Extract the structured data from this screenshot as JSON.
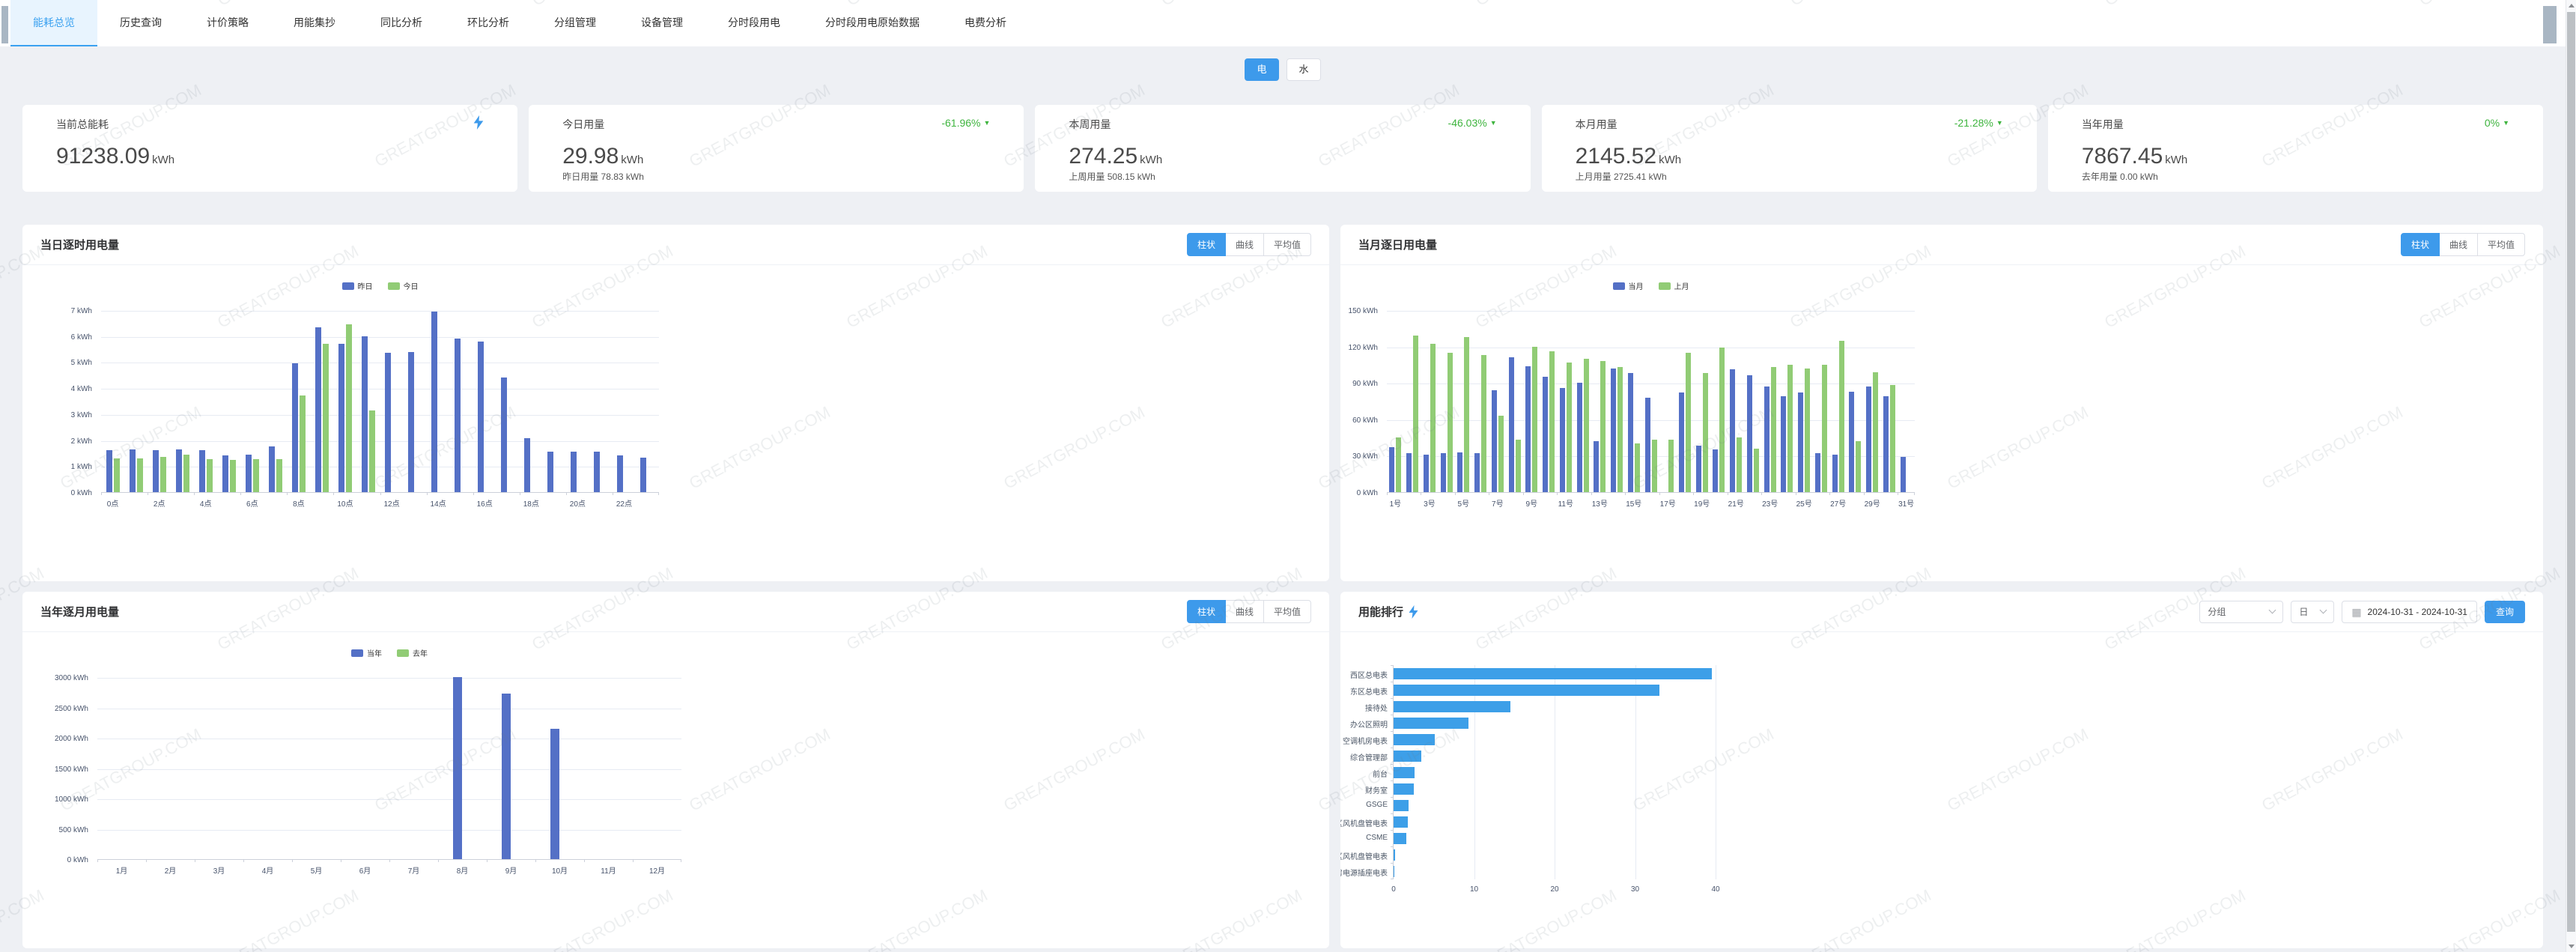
{
  "watermark": "GREATGROUP.COM",
  "tabs": [
    {
      "label": "能耗总览",
      "active": true
    },
    {
      "label": "历史查询",
      "active": false
    },
    {
      "label": "计价策略",
      "active": false
    },
    {
      "label": "用能集抄",
      "active": false
    },
    {
      "label": "同比分析",
      "active": false
    },
    {
      "label": "环比分析",
      "active": false
    },
    {
      "label": "分组管理",
      "active": false
    },
    {
      "label": "设备管理",
      "active": false
    },
    {
      "label": "分时段用电",
      "active": false
    },
    {
      "label": "分时段用电原始数据",
      "active": false
    },
    {
      "label": "电费分析",
      "active": false
    }
  ],
  "energy_toggle": {
    "electric": "电",
    "water": "水"
  },
  "kpi_cards": [
    {
      "title": "当前总能耗",
      "value": "91238.09",
      "unit": "kWh"
    },
    {
      "title": "今日用量",
      "value": "29.98",
      "unit": "kWh",
      "change": "-61.96%",
      "sub": "昨日用量 78.83 kWh"
    },
    {
      "title": "本周用量",
      "value": "274.25",
      "unit": "kWh",
      "change": "-46.03%",
      "sub": "上周用量 508.15 kWh"
    },
    {
      "title": "本月用量",
      "value": "2145.52",
      "unit": "kWh",
      "change": "-21.28%",
      "sub": "上月用量 2725.41 kWh"
    },
    {
      "title": "当年用量",
      "value": "7867.45",
      "unit": "kWh",
      "change": "0%",
      "sub": "去年用量 0.00 kWh"
    }
  ],
  "chart_data": [
    {
      "id": "hourly",
      "type": "bar",
      "title": "当日逐时用电量",
      "unit": "kWh",
      "ylim": [
        0,
        7
      ],
      "ystep": 1,
      "xlabel_every": 2,
      "categories": [
        "0点",
        "1点",
        "2点",
        "3点",
        "4点",
        "5点",
        "6点",
        "7点",
        "8点",
        "9点",
        "10点",
        "11点",
        "12点",
        "13点",
        "14点",
        "15点",
        "16点",
        "17点",
        "18点",
        "19点",
        "20点",
        "21点",
        "22点",
        "23点"
      ],
      "series": [
        {
          "name": "昨日",
          "color": "#5470c6",
          "values": [
            1.6,
            1.63,
            1.6,
            1.63,
            1.6,
            1.42,
            1.44,
            1.77,
            4.95,
            6.35,
            5.7,
            6.0,
            5.35,
            5.38,
            6.93,
            5.9,
            5.8,
            4.4,
            2.07,
            1.57,
            1.57,
            1.57,
            1.4,
            1.32
          ]
        },
        {
          "name": "今日",
          "color": "#91cc75",
          "values": [
            1.3,
            1.3,
            1.35,
            1.43,
            1.27,
            1.25,
            1.27,
            1.27,
            3.72,
            5.7,
            6.45,
            3.15,
            null,
            null,
            null,
            null,
            null,
            null,
            null,
            null,
            null,
            null,
            null,
            null
          ]
        }
      ],
      "view_buttons": [
        "柱状",
        "曲线",
        "平均值"
      ],
      "active_view": "柱状"
    },
    {
      "id": "daily",
      "type": "bar",
      "title": "当月逐日用电量",
      "unit": "kWh",
      "ylim": [
        0,
        150
      ],
      "ystep": 30,
      "xlabel_every": 2,
      "categories": [
        "1号",
        "2号",
        "3号",
        "4号",
        "5号",
        "6号",
        "7号",
        "8号",
        "9号",
        "10号",
        "11号",
        "12号",
        "13号",
        "14号",
        "15号",
        "16号",
        "17号",
        "18号",
        "19号",
        "20号",
        "21号",
        "22号",
        "23号",
        "24号",
        "25号",
        "26号",
        "27号",
        "28号",
        "29号",
        "30号",
        "31号"
      ],
      "series": [
        {
          "name": "当月",
          "color": "#5470c6",
          "values": [
            37,
            32,
            31,
            32,
            33,
            32,
            84,
            111,
            104,
            95,
            86,
            90,
            42,
            102,
            98,
            78,
            null,
            82,
            38,
            35,
            101,
            96,
            87,
            79,
            82,
            32,
            31,
            83,
            87,
            79,
            29
          ]
        },
        {
          "name": "上月",
          "color": "#91cc75",
          "values": [
            45,
            129,
            122,
            115,
            128,
            113,
            63,
            43,
            120,
            116,
            107,
            110,
            108,
            103,
            40,
            43,
            43,
            115,
            98,
            119,
            45,
            36,
            103,
            105,
            102,
            105,
            125,
            42,
            99,
            88,
            null
          ]
        }
      ],
      "view_buttons": [
        "柱状",
        "曲线",
        "平均值"
      ],
      "active_view": "柱状"
    },
    {
      "id": "monthly",
      "type": "bar",
      "title": "当年逐月用电量",
      "unit": "kWh",
      "ylim": [
        0,
        3000
      ],
      "ystep": 500,
      "xlabel_every": 1,
      "categories": [
        "1月",
        "2月",
        "3月",
        "4月",
        "5月",
        "6月",
        "7月",
        "8月",
        "9月",
        "10月",
        "11月",
        "12月"
      ],
      "series": [
        {
          "name": "当年",
          "color": "#5470c6",
          "values": [
            null,
            null,
            null,
            null,
            null,
            null,
            null,
            3000,
            2730,
            2146,
            null,
            null
          ]
        },
        {
          "name": "去年",
          "color": "#91cc75",
          "values": [
            null,
            null,
            null,
            null,
            null,
            null,
            null,
            null,
            null,
            null,
            null,
            null
          ]
        }
      ],
      "view_buttons": [
        "柱状",
        "曲线",
        "平均值"
      ],
      "active_view": "柱状"
    },
    {
      "id": "ranking",
      "type": "bar-horizontal",
      "title": "用能排行",
      "xlim": [
        0,
        44
      ],
      "xticks": [
        0,
        10,
        20,
        30,
        40
      ],
      "bar_color": "#3d9fe8",
      "categories": [
        "西区总电表",
        "东区总电表",
        "接待处",
        "办公区照明",
        "空调机房电表",
        "综合管理部",
        "前台",
        "财务室",
        "GSGE",
        "东区风机盘管电表",
        "CSME",
        "西区风机盘管电表",
        "机房电源插座电表"
      ],
      "values": [
        39.5,
        33,
        14.5,
        9.3,
        5.1,
        3.4,
        2.6,
        2.5,
        1.9,
        1.8,
        1.6,
        0.2,
        0.02
      ],
      "controls": {
        "group_select": "分组",
        "period_select": "日",
        "date_range": "2024-10-31 - 2024-10-31",
        "query_label": "查询"
      }
    }
  ]
}
